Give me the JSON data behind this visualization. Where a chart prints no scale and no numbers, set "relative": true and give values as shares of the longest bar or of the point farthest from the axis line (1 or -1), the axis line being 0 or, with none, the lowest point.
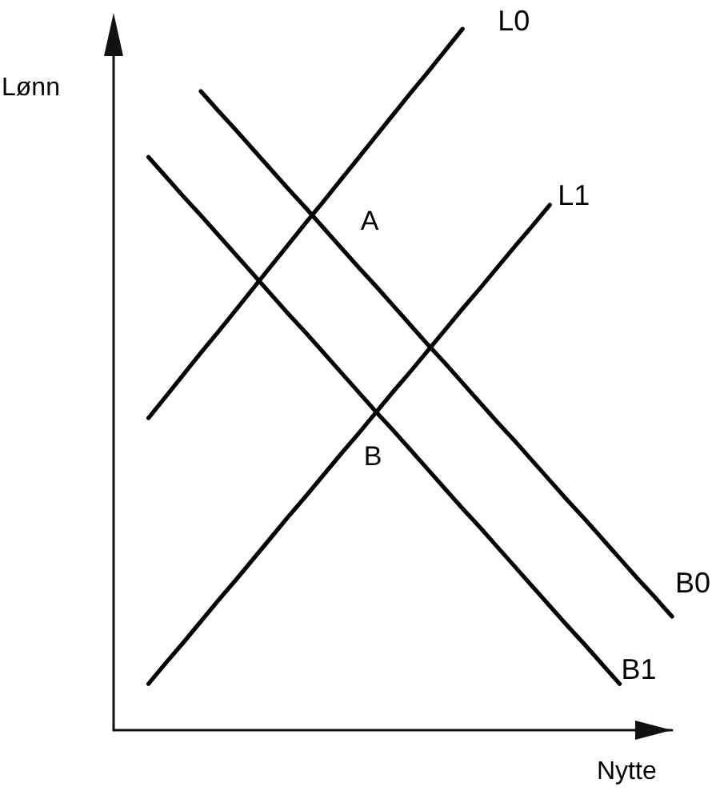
{
  "chart_data": {
    "type": "line",
    "relative": true,
    "xlabel": "Nytte",
    "ylabel": "Lønn",
    "grid": false,
    "line_style": "solid",
    "categories": [
      null,
      null,
      null,
      null,
      null,
      null,
      null,
      null,
      null,
      null,
      null,
      null,
      null,
      null,
      null,
      null,
      null,
      null,
      null,
      null,
      null,
      null,
      null,
      null,
      null,
      null,
      null,
      null,
      null,
      null,
      null,
      null,
      null
    ],
    "series": [
      {
        "name": "L0",
        "color": "#000000",
        "values": [
          null,
          null,
          0.445,
          0.476,
          0.507,
          0.538,
          0.568,
          0.599,
          0.63,
          0.661,
          0.692,
          0.723,
          0.753,
          0.784,
          0.815,
          0.846,
          0.877,
          0.908,
          0.938,
          0.969,
          1,
          null,
          null,
          null,
          null,
          null,
          null,
          null,
          null,
          null,
          null,
          null,
          null
        ]
      },
      {
        "name": "L1",
        "color": "#000000",
        "values": [
          null,
          null,
          0.066,
          0.096,
          0.125,
          0.155,
          0.185,
          0.214,
          0.244,
          0.274,
          0.304,
          0.333,
          0.363,
          0.393,
          0.422,
          0.452,
          0.482,
          0.511,
          0.541,
          0.571,
          0.601,
          0.63,
          0.66,
          0.69,
          0.719,
          0.749,
          null,
          null,
          null,
          null,
          null,
          null,
          null
        ]
      },
      {
        "name": "B0",
        "color": "#000000",
        "values": [
          null,
          null,
          null,
          null,
          null,
          0.911,
          0.883,
          0.856,
          0.828,
          0.8,
          0.772,
          0.745,
          0.717,
          0.689,
          0.661,
          0.634,
          0.606,
          0.578,
          0.55,
          0.523,
          0.495,
          0.467,
          0.439,
          0.412,
          0.384,
          0.356,
          0.328,
          0.301,
          0.273,
          0.245,
          0.217,
          0.19,
          0.162
        ]
      },
      {
        "name": "B1",
        "color": "#000000",
        "values": [
          null,
          null,
          0.817,
          0.789,
          0.761,
          0.734,
          0.706,
          0.678,
          0.65,
          0.622,
          0.594,
          0.567,
          0.539,
          0.511,
          0.483,
          0.455,
          0.428,
          0.4,
          0.372,
          0.344,
          0.316,
          0.289,
          0.261,
          0.233,
          0.205,
          0.177,
          0.149,
          0.122,
          0.094,
          0.066,
          null,
          null,
          null
        ]
      }
    ],
    "annotations": [
      "A",
      "B"
    ]
  }
}
